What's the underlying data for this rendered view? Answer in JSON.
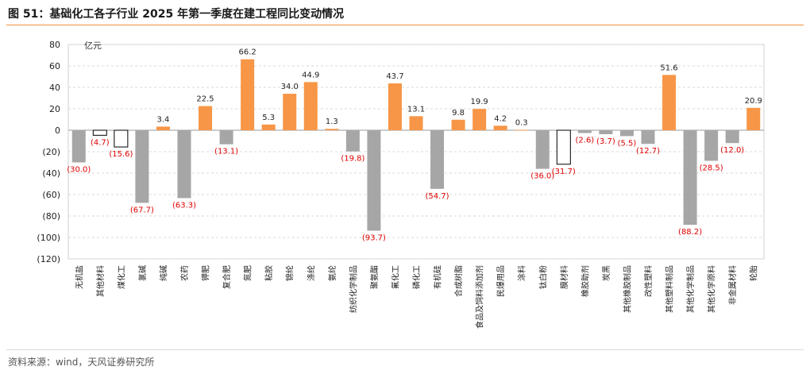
{
  "title": "图 51：基础化工各子行业 2025 年第一季度在建工程同比变动情况",
  "source": "资料来源：wind，天风证券研究所",
  "colors": {
    "accent": "#f0923a",
    "positive": "#f79646",
    "negative": "#a6a6a6",
    "negative_label": "#e00000",
    "hollow_stroke": "#000000"
  },
  "chart_data": {
    "type": "bar",
    "unit_label": "亿元",
    "ylim": [
      -120,
      80
    ],
    "yticks": [
      80,
      60,
      40,
      20,
      0,
      -20,
      -40,
      -60,
      -80,
      -100,
      -120
    ],
    "ytick_labels": [
      "80",
      "60",
      "40",
      "20",
      "0",
      "(20)",
      "(40)",
      "(60)",
      "(80)",
      "(100)",
      "(120)"
    ],
    "grid": true,
    "legend": "none",
    "categories": [
      "无机盐",
      "其他材料",
      "煤化工",
      "氯碱",
      "纯碱",
      "农药",
      "钾肥",
      "复合肥",
      "氮肥",
      "粘胶",
      "锦纶",
      "涤纶",
      "氨纶",
      "纺织化学制品",
      "聚氨酯",
      "氟化工",
      "磷化工",
      "有机硅",
      "合成树脂",
      "食品及饲料添加剂",
      "民爆用品",
      "涂料",
      "钛白粉",
      "膜材料",
      "橡胶助剂",
      "炭黑",
      "其他橡胶制品",
      "改性塑料",
      "其他塑料制品",
      "其他化学制品",
      "其他化学原料",
      "非金属材料",
      "轮胎"
    ],
    "values": [
      -30.0,
      -4.7,
      -15.6,
      -67.7,
      3.4,
      -63.3,
      22.5,
      -13.1,
      66.2,
      5.3,
      34.0,
      44.9,
      1.3,
      -19.8,
      -93.7,
      43.7,
      13.1,
      -54.7,
      9.8,
      19.9,
      4.2,
      0.3,
      -36.0,
      -31.7,
      -2.6,
      -3.7,
      -5.5,
      -12.7,
      51.6,
      -88.2,
      -28.5,
      -12.0,
      20.9
    ],
    "value_labels": [
      "(30.0)",
      "(4.7)",
      "(15.6)",
      "(67.7)",
      "3.4",
      "(63.3)",
      "22.5",
      "(13.1)",
      "66.2",
      "5.3",
      "34.0",
      "44.9",
      "1.3",
      "(19.8)",
      "(93.7)",
      "43.7",
      "13.1",
      "(54.7)",
      "9.8",
      "19.9",
      "4.2",
      "0.3",
      "(36.0)",
      "(31.7)",
      "(2.6)",
      "(3.7)",
      "(5.5)",
      "(12.7)",
      "51.6",
      "(88.2)",
      "(28.5)",
      "(12.0)",
      "20.9"
    ],
    "hollow_bars": [
      "其他材料",
      "煤化工",
      "膜材料"
    ]
  }
}
